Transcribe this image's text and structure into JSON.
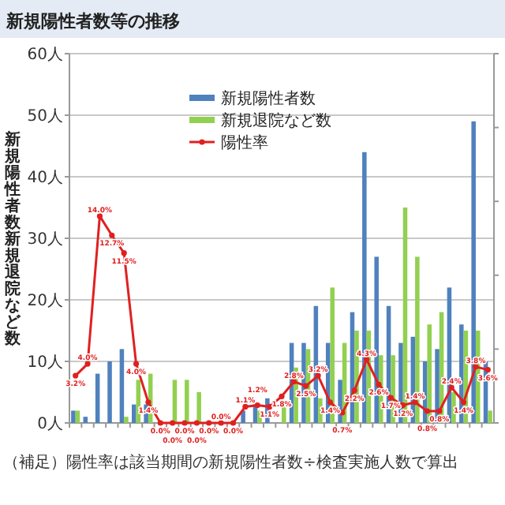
{
  "chart_data": {
    "type": "bar",
    "title": "新規陽性者数等の推移",
    "ylabel": "新規陽性者数新規退院など数",
    "categories": [
      null,
      null,
      null,
      null,
      null,
      null,
      null,
      null,
      null,
      null,
      null,
      null,
      null,
      null,
      null,
      null,
      null,
      null,
      null,
      null,
      null,
      null,
      null,
      null,
      null,
      null,
      null,
      null,
      null,
      null,
      null,
      null,
      null,
      null,
      null
    ],
    "ylim": [
      0,
      60
    ],
    "yticks": [
      {
        "value": 0,
        "label": "0人"
      },
      {
        "value": 10,
        "label": "10人"
      },
      {
        "value": 20,
        "label": "20人"
      },
      {
        "value": 30,
        "label": "30人"
      },
      {
        "value": 40,
        "label": "40人"
      },
      {
        "value": 50,
        "label": "50人"
      },
      {
        "value": 60,
        "label": "60人"
      }
    ],
    "y2lim": [
      0,
      25
    ],
    "y2ticks": [
      {
        "value": 0,
        "label": null
      },
      {
        "value": 5,
        "label": null
      },
      {
        "value": 10,
        "label": null
      },
      {
        "value": 15,
        "label": null
      },
      {
        "value": 20,
        "label": null
      },
      {
        "value": 25,
        "label": null
      }
    ],
    "grid": "y",
    "legend": "top",
    "marker": "circle",
    "series": [
      {
        "name": "新規陽性者数",
        "color": "#4f81bd",
        "values": [
          2,
          1,
          8,
          10,
          12,
          3,
          3,
          0,
          0,
          0,
          0,
          0,
          0,
          0,
          2,
          3,
          4,
          0,
          13,
          13,
          19,
          13,
          7,
          18,
          44,
          27,
          19,
          13,
          14,
          10,
          12,
          22,
          16,
          49,
          10
        ]
      },
      {
        "name": "新規退院など数",
        "color": "#92d050",
        "values": [
          2,
          0,
          0,
          0,
          1,
          7,
          8,
          0,
          7,
          7,
          5,
          0,
          0,
          0,
          0,
          2,
          0,
          3,
          9,
          12,
          4,
          22,
          13,
          15,
          15,
          11,
          11,
          35,
          27,
          16,
          18,
          5,
          15,
          15,
          2
        ]
      },
      {
        "name": "陽性率",
        "type": "line",
        "axis": "y2",
        "color": "#e02020",
        "values": [
          3.2,
          4.0,
          14.0,
          12.7,
          11.5,
          4.0,
          1.4,
          0,
          0,
          0,
          0,
          0,
          0,
          0,
          1.1,
          1.2,
          1.1,
          1.8,
          2.8,
          2.5,
          3.2,
          1.4,
          0.7,
          2.2,
          4.3,
          2.6,
          1.7,
          1.2,
          1.4,
          0.8,
          0.8,
          2.4,
          1.4,
          3.8,
          3.6
        ],
        "value_labels": [
          "3.2%",
          "4.0%",
          "14.0%",
          "12.7%",
          "11.5%",
          "4.0%",
          "1.4%",
          "0.0%",
          "0.0%",
          "0.0%",
          "0.0%",
          "0.0%",
          "0.0%",
          "0.0%",
          "1.1%",
          "1.2%",
          "1.1%",
          "1.8%",
          "2.8%",
          "2.5%",
          "3.2%",
          "1.4%",
          "0.7%",
          "2.2%",
          "4.3%",
          "2.6%",
          "1.7%",
          "1.2%",
          "1.4%",
          "0.8%",
          "0.8%",
          "2.4%",
          "1.4%",
          "3.8%",
          "3.6%"
        ]
      }
    ],
    "annotations": [
      "（補足）陽性率は該当期間の新規陽性者数÷検査実施人数で算出"
    ]
  }
}
